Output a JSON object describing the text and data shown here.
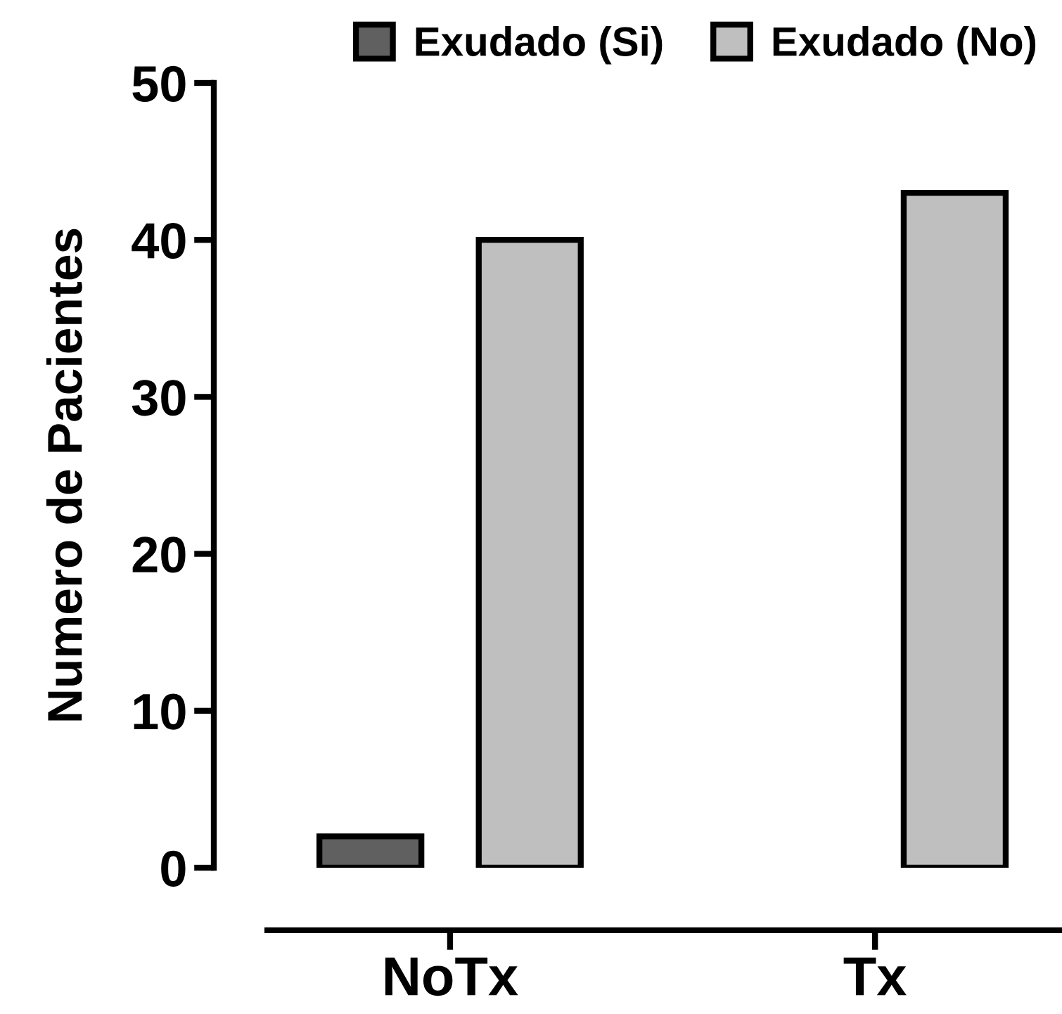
{
  "chart_data": {
    "type": "bar",
    "ylabel": "Numero de Pacientes",
    "categories": [
      "NoTx",
      "Tx"
    ],
    "series": [
      {
        "name": "Exudado (Si)",
        "color": "#606060",
        "values": [
          2,
          0
        ]
      },
      {
        "name": "Exudado (No)",
        "color": "#bfbfbf",
        "values": [
          40,
          43
        ]
      }
    ],
    "ylim": [
      0,
      50
    ],
    "yticks": [
      0,
      10,
      20,
      30,
      40,
      50
    ],
    "grid": false,
    "legend": "top right"
  }
}
